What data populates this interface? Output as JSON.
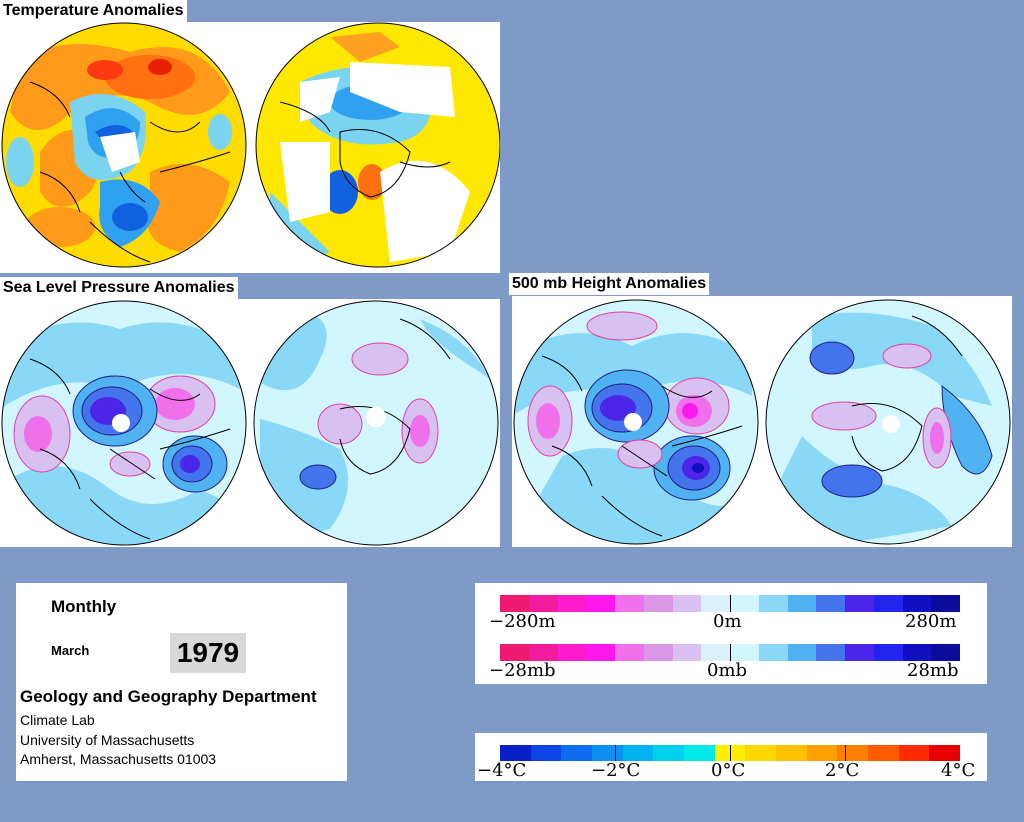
{
  "headers": {
    "temperature": "Temperature Anomalies",
    "slp": "Sea Level Pressure Anomalies",
    "height": "500 mb Height Anomalies"
  },
  "info": {
    "period": "Monthly",
    "month": "March",
    "year": "1979",
    "department": "Geology and Geography Department",
    "lab": "Climate Lab",
    "university": "University of Massachusetts",
    "address": "Amherst, Massachusetts 01003"
  },
  "height_scale": {
    "labels": [
      "−280m",
      "0m",
      "280m"
    ],
    "colors": [
      "#ee1a70",
      "#f21ca0",
      "#fc1ccc",
      "#fe18ee",
      "#f070ec",
      "#dc96e8",
      "#d8c0f0",
      "#dcf2fa",
      "#d2f6ff",
      "#8ad8f8",
      "#50b2f0",
      "#4474ec",
      "#4c26e8",
      "#2424f0",
      "#1010c0",
      "#0c0c9c"
    ]
  },
  "pressure_scale": {
    "labels": [
      "−28mb",
      "0mb",
      "28mb"
    ],
    "colors": [
      "#ee1a70",
      "#f21ca0",
      "#fc1ccc",
      "#fe18ee",
      "#f070ec",
      "#dc96e8",
      "#d8c0f0",
      "#dcf2fa",
      "#d2f6ff",
      "#8ad8f8",
      "#50b2f0",
      "#4474ec",
      "#4c26e8",
      "#2424f0",
      "#1010c0",
      "#0c0c9c"
    ]
  },
  "temp_scale": {
    "labels": [
      "−4°C",
      "−2°C",
      "0°C",
      "2°C",
      "4°C"
    ],
    "colors": [
      "#0a1ec8",
      "#0d44e6",
      "#0d6cf0",
      "#0c90f2",
      "#00b4f0",
      "#00d0ec",
      "#00e8e8",
      "#ffee00",
      "#ffd800",
      "#ffc000",
      "#ffa000",
      "#ff8000",
      "#ff5a00",
      "#ff2a00",
      "#e80000"
    ]
  }
}
